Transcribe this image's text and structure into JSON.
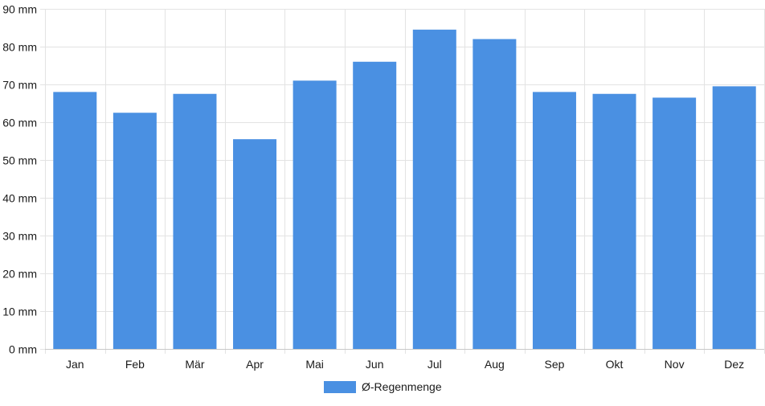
{
  "chart_data": {
    "type": "bar",
    "categories": [
      "Jan",
      "Feb",
      "Mär",
      "Apr",
      "Mai",
      "Jun",
      "Jul",
      "Aug",
      "Sep",
      "Okt",
      "Nov",
      "Dez"
    ],
    "series": [
      {
        "name": "Ø-Regenmenge",
        "color": "#4a90e2",
        "values": [
          68,
          62.5,
          67.5,
          55.5,
          71,
          76,
          84.5,
          82,
          68,
          67.5,
          66.5,
          69.5
        ]
      }
    ],
    "y_ticks": [
      "0 mm",
      "10 mm",
      "20 mm",
      "30 mm",
      "40 mm",
      "50 mm",
      "60 mm",
      "70 mm",
      "80 mm",
      "90 mm"
    ],
    "ylim": [
      0,
      90
    ],
    "ytick_step": 10,
    "y_unit": "mm",
    "grid": true,
    "legend_position": "bottom"
  },
  "legend": {
    "label": "Ø-Regenmenge",
    "color": "#4a90e2"
  }
}
